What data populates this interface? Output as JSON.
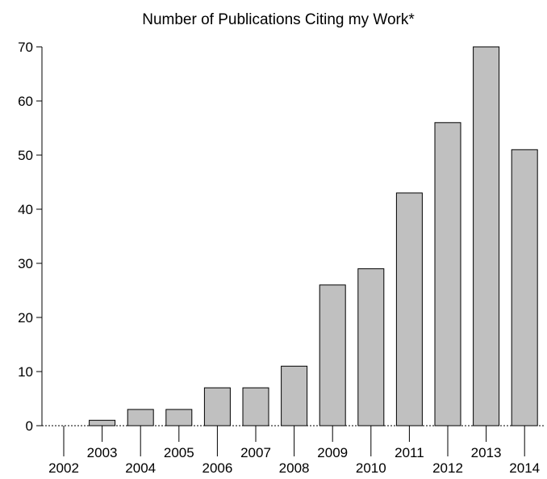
{
  "chart_data": {
    "type": "bar",
    "title": "Number of Publications Citing my Work*",
    "xlabel": "",
    "ylabel": "",
    "categories": [
      "2002",
      "2003",
      "2004",
      "2005",
      "2006",
      "2007",
      "2008",
      "2009",
      "2010",
      "2011",
      "2012",
      "2013",
      "2014"
    ],
    "values": [
      0,
      1,
      3,
      3,
      7,
      7,
      11,
      26,
      29,
      43,
      56,
      70,
      51
    ],
    "ylim": [
      0,
      70
    ],
    "yticks": [
      0,
      10,
      20,
      30,
      40,
      50,
      60,
      70
    ],
    "grid": false,
    "legend": "none",
    "colors": {
      "bar_fill": "#c0c0c0",
      "bar_stroke": "#000000",
      "axis": "#000000"
    }
  }
}
